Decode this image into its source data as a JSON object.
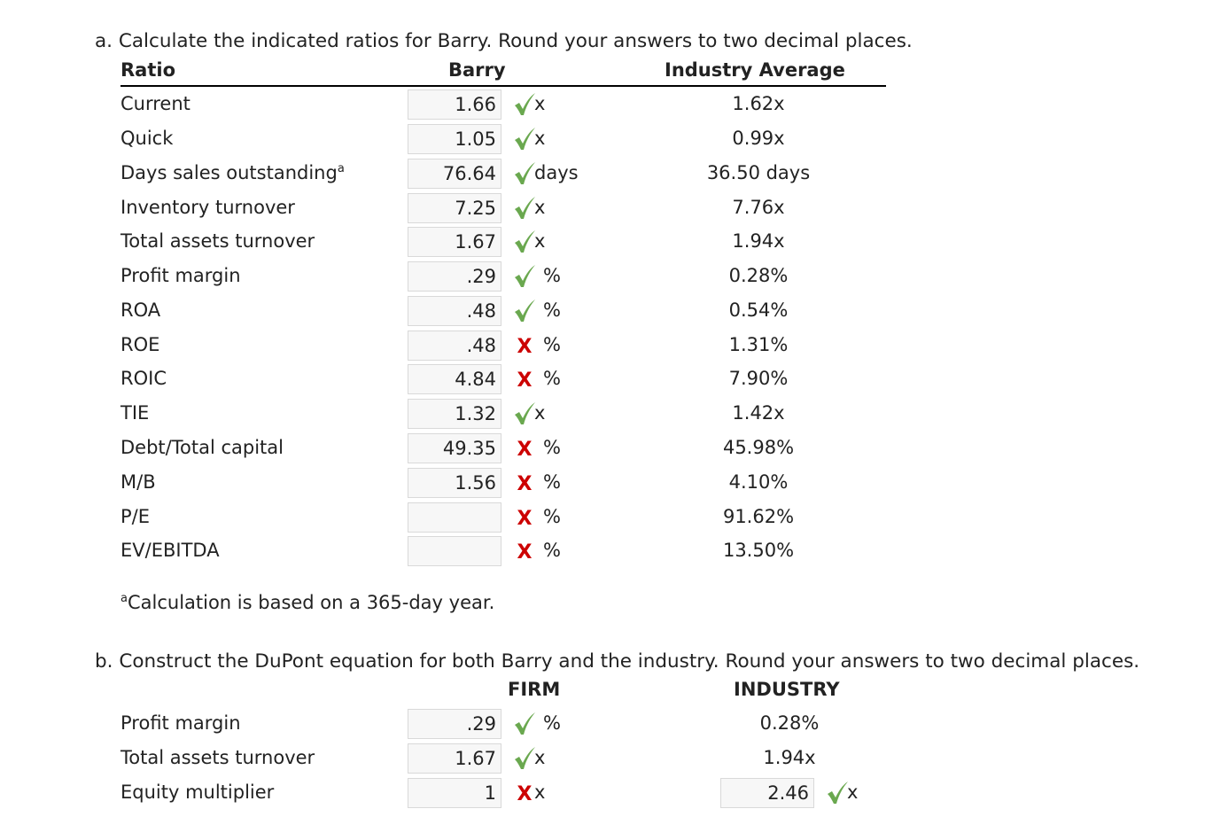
{
  "part_a": {
    "prompt": "a. Calculate the indicated ratios for Barry. Round your answers to two decimal places.",
    "headers": {
      "ratio": "Ratio",
      "company": "Barry",
      "industry": "Industry Average"
    },
    "rows": [
      {
        "label": "Current",
        "value": "1.66",
        "mark": "check",
        "unit": "x",
        "industry": "1.62x"
      },
      {
        "label": "Quick",
        "value": "1.05",
        "mark": "check",
        "unit": "x",
        "industry": "0.99x"
      },
      {
        "label": "Days sales outstanding",
        "sup": "a",
        "value": "76.64",
        "mark": "check",
        "unit": "days",
        "industry": "36.50 days"
      },
      {
        "label": "Inventory turnover",
        "value": "7.25",
        "mark": "check",
        "unit": "x",
        "industry": "7.76x"
      },
      {
        "label": "Total assets turnover",
        "value": "1.67",
        "mark": "check",
        "unit": "x",
        "industry": "1.94x"
      },
      {
        "label": "Profit margin",
        "value": ".29",
        "mark": "check",
        "unit": "%",
        "industry": "0.28%"
      },
      {
        "label": "ROA",
        "value": ".48",
        "mark": "check",
        "unit": "%",
        "industry": "0.54%"
      },
      {
        "label": "ROE",
        "value": ".48",
        "mark": "cross",
        "unit": "%",
        "industry": "1.31%"
      },
      {
        "label": "ROIC",
        "value": "4.84",
        "mark": "cross",
        "unit": "%",
        "industry": "7.90%"
      },
      {
        "label": "TIE",
        "value": "1.32",
        "mark": "check",
        "unit": "x",
        "industry": "1.42x"
      },
      {
        "label": "Debt/Total capital",
        "value": "49.35",
        "mark": "cross",
        "unit": "%",
        "industry": "45.98%"
      },
      {
        "label": "M/B",
        "value": "1.56",
        "mark": "cross",
        "unit": "%",
        "industry": "4.10%"
      },
      {
        "label": "P/E",
        "value": "",
        "mark": "cross",
        "unit": "%",
        "industry": "91.62%"
      },
      {
        "label": "EV/EBITDA",
        "value": "",
        "mark": "cross",
        "unit": "%",
        "industry": "13.50%"
      }
    ],
    "footnote_sup": "a",
    "footnote": "Calculation is based on a 365-day year."
  },
  "part_b": {
    "prompt": "b. Construct the DuPont equation for both Barry and the industry. Round your answers to two decimal places.",
    "headers": {
      "firm": "FIRM",
      "industry": "INDUSTRY"
    },
    "rows": [
      {
        "label": "Profit margin",
        "value": ".29",
        "mark": "check",
        "unit": "%",
        "industry": "0.28%"
      },
      {
        "label": "Total assets turnover",
        "value": "1.67",
        "mark": "check",
        "unit": "x",
        "industry": "1.94x"
      },
      {
        "label": "Equity multiplier",
        "value": "1",
        "mark": "cross",
        "unit": "x",
        "industry_input": "2.46",
        "industry_mark": "check",
        "industry_unit": "x"
      }
    ]
  },
  "colors": {
    "check": "#6aa84f",
    "cross": "#cc0000",
    "rule": "#000000",
    "input_bg": "#f7f7f7"
  }
}
